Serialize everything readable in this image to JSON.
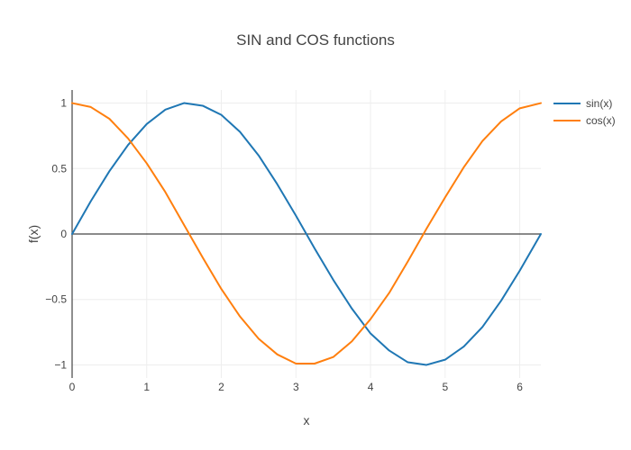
{
  "chart_data": {
    "type": "line",
    "title": "SIN and COS functions",
    "xlabel": "x",
    "ylabel": "f(x)",
    "xlim": [
      0,
      6.283
    ],
    "ylim": [
      -1.1,
      1.1
    ],
    "x_ticks": [
      0,
      1,
      2,
      3,
      4,
      5,
      6
    ],
    "x_tick_labels": [
      "0",
      "1",
      "2",
      "3",
      "4",
      "5",
      "6"
    ],
    "y_ticks": [
      1,
      0.5,
      0,
      -0.5,
      -1
    ],
    "y_tick_labels": [
      "1",
      "0.5",
      "0",
      "−0.5",
      "−1"
    ],
    "grid": true,
    "zero_line": true,
    "legend_position": "top-right",
    "series": [
      {
        "name": "sin(x)",
        "color": "#1f77b4",
        "x": [
          0,
          0.25,
          0.5,
          0.75,
          1,
          1.25,
          1.5,
          1.75,
          2,
          2.25,
          2.5,
          2.75,
          3,
          3.25,
          3.5,
          3.75,
          4,
          4.25,
          4.5,
          4.75,
          5,
          5.25,
          5.5,
          5.75,
          6,
          6.283
        ],
        "y": [
          0,
          0.25,
          0.48,
          0.68,
          0.84,
          0.95,
          1,
          0.98,
          0.91,
          0.78,
          0.6,
          0.38,
          0.14,
          -0.11,
          -0.35,
          -0.57,
          -0.76,
          -0.89,
          -0.98,
          -1,
          -0.96,
          -0.86,
          -0.71,
          -0.51,
          -0.28,
          0
        ]
      },
      {
        "name": "cos(x)",
        "color": "#ff7f0e",
        "x": [
          0,
          0.25,
          0.5,
          0.75,
          1,
          1.25,
          1.5,
          1.75,
          2,
          2.25,
          2.5,
          2.75,
          3,
          3.25,
          3.5,
          3.75,
          4,
          4.25,
          4.5,
          4.75,
          5,
          5.25,
          5.5,
          5.75,
          6,
          6.283
        ],
        "y": [
          1,
          0.97,
          0.88,
          0.73,
          0.54,
          0.32,
          0.07,
          -0.18,
          -0.42,
          -0.63,
          -0.8,
          -0.92,
          -0.99,
          -0.99,
          -0.94,
          -0.82,
          -0.65,
          -0.45,
          -0.21,
          0.04,
          0.28,
          0.51,
          0.71,
          0.86,
          0.96,
          1
        ]
      }
    ]
  }
}
